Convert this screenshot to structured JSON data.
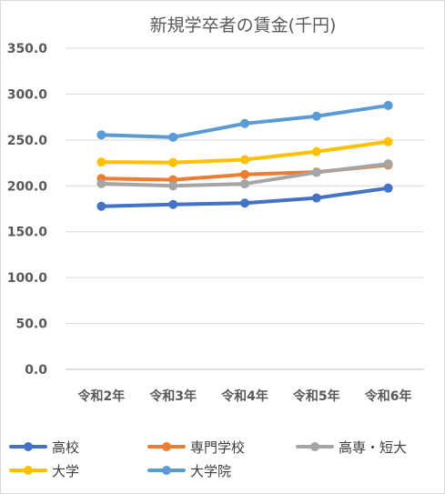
{
  "chart_data": {
    "type": "line",
    "title": "新規学卒者の賃金(千円)",
    "xlabel": "",
    "ylabel": "",
    "categories": [
      "令和2年",
      "令和3年",
      "令和4年",
      "令和5年",
      "令和6年"
    ],
    "ylim": [
      0,
      350
    ],
    "yticks": [
      "0.0",
      "50.0",
      "100.0",
      "150.0",
      "200.0",
      "250.0",
      "300.0",
      "350.0"
    ],
    "grid": true,
    "legend_position": "bottom",
    "series": [
      {
        "name": "高校",
        "color": "#4472C4",
        "values": [
          177.7,
          179.7,
          181.2,
          186.8,
          197.5
        ]
      },
      {
        "name": "専門学校",
        "color": "#ED7D31",
        "values": [
          208.0,
          206.6,
          212.4,
          215.0,
          222.7
        ]
      },
      {
        "name": "高専・短大",
        "color": "#A5A5A5",
        "values": [
          202.4,
          200.0,
          202.2,
          214.6,
          224.0
        ]
      },
      {
        "name": "大学",
        "color": "#FFC000",
        "values": [
          226.0,
          225.4,
          228.5,
          237.3,
          248.1
        ]
      },
      {
        "name": "大学院",
        "color": "#5B9BD5",
        "values": [
          255.5,
          253.0,
          267.9,
          275.9,
          287.6
        ]
      }
    ]
  }
}
